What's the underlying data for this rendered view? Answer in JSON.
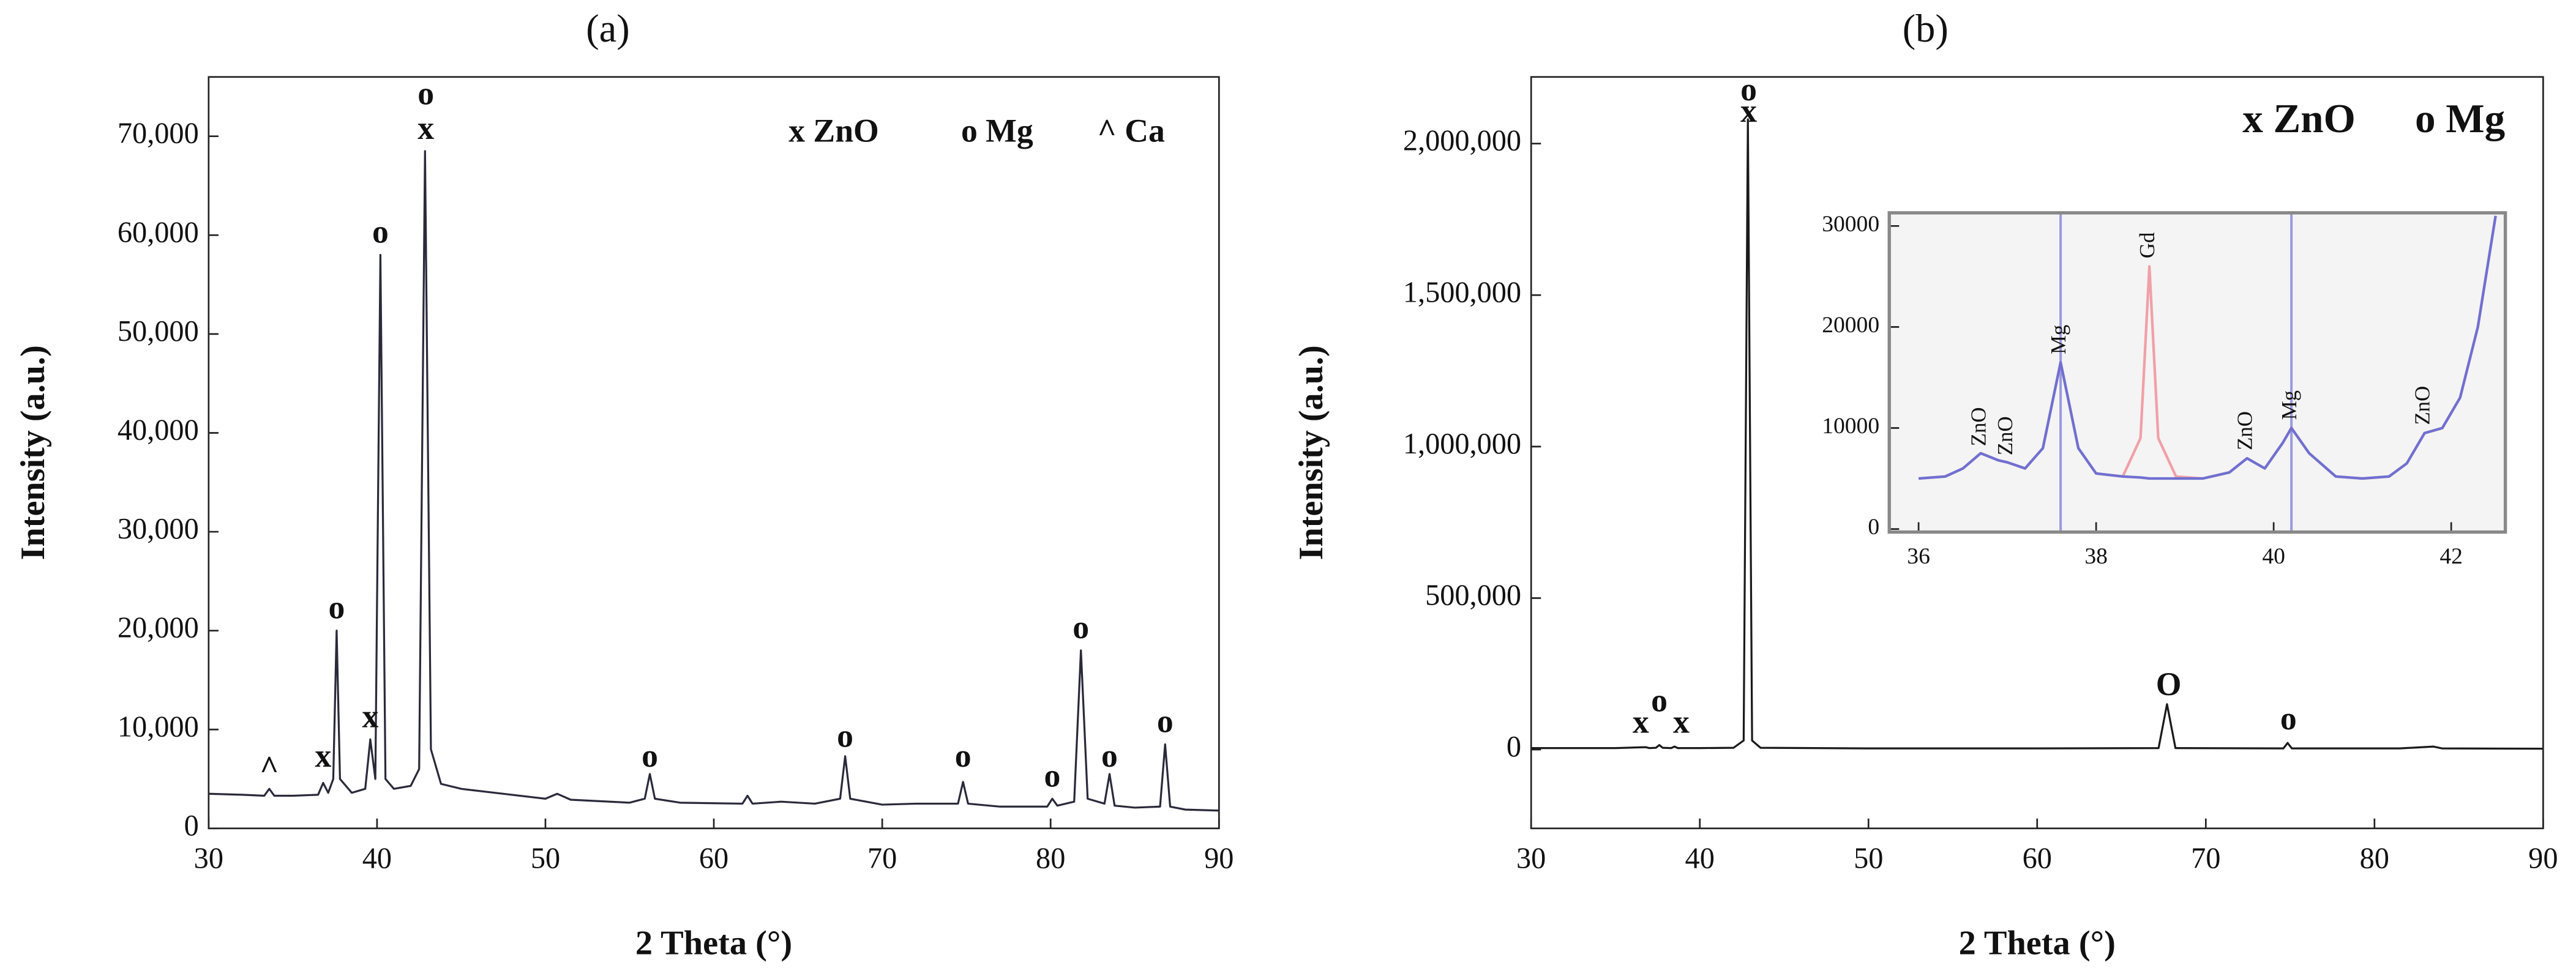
{
  "chart_data": [
    {
      "type": "line",
      "title": "(a)",
      "xlabel": "2 Theta (°)",
      "ylabel": "Intensity (a.u.)",
      "xlim": [
        30,
        90
      ],
      "xticks": [
        30,
        40,
        50,
        60,
        70,
        80,
        90
      ],
      "ylim": [
        0,
        76000
      ],
      "yticks": [
        0,
        {
          "value": 10000,
          "label": "10,000"
        },
        {
          "value": 20000,
          "label": "20,000"
        },
        {
          "value": 30000,
          "label": "30,000"
        },
        {
          "value": 40000,
          "label": "40,000"
        },
        {
          "value": 50000,
          "label": "50,000"
        },
        {
          "value": 60000,
          "label": "60,000"
        },
        {
          "value": 70000,
          "label": "70,000"
        }
      ],
      "key": [
        "x ZnO",
        "o Mg",
        "^ Ca"
      ],
      "x": [
        30,
        32,
        33.3,
        33.6,
        33.9,
        35,
        36.5,
        36.8,
        37.1,
        37.4,
        37.6,
        37.8,
        38.5,
        39.3,
        39.6,
        39.9,
        40.2,
        40.5,
        41,
        42,
        42.5,
        42.85,
        43.2,
        43.8,
        45,
        48,
        50,
        50.7,
        51.5,
        55,
        55.9,
        56.2,
        56.5,
        58,
        61.7,
        62,
        62.3,
        64,
        66,
        67.5,
        67.8,
        68.1,
        70,
        72,
        74.5,
        74.8,
        75.1,
        77,
        79.8,
        80.1,
        80.4,
        81.4,
        81.8,
        82.2,
        83.2,
        83.5,
        83.8,
        85,
        86.5,
        86.8,
        87.1,
        88,
        90
      ],
      "series": [
        {
          "color": "#2a2a3a",
          "values": [
            3500,
            3400,
            3300,
            4000,
            3300,
            3300,
            3400,
            4600,
            3600,
            5000,
            20000,
            5000,
            3600,
            4000,
            9000,
            5000,
            58000,
            5000,
            4000,
            4300,
            6000,
            68500,
            8000,
            4500,
            4000,
            3400,
            3000,
            3500,
            2900,
            2600,
            3000,
            5500,
            3000,
            2600,
            2500,
            3300,
            2500,
            2700,
            2500,
            3000,
            7300,
            3000,
            2400,
            2500,
            2500,
            4700,
            2500,
            2200,
            2200,
            3000,
            2300,
            2700,
            18000,
            3000,
            2500,
            5500,
            2300,
            2100,
            2200,
            8500,
            2200,
            1900,
            1800
          ]
        }
      ],
      "annotations": [
        {
          "text": "^",
          "x": 33.6,
          "y": 5800
        },
        {
          "text": "x",
          "x": 36.8,
          "y": 7000
        },
        {
          "text": "o",
          "x": 37.6,
          "y": 22000
        },
        {
          "text": "x",
          "x": 39.6,
          "y": 11000
        },
        {
          "text": "o",
          "x": 40.2,
          "y": 60000
        },
        {
          "text": "x",
          "x": 42.9,
          "y": 70500
        },
        {
          "text": "o",
          "x": 42.9,
          "y": 74000
        },
        {
          "text": "o",
          "x": 56.2,
          "y": 7000
        },
        {
          "text": "o",
          "x": 67.8,
          "y": 9000
        },
        {
          "text": "o",
          "x": 74.8,
          "y": 7000
        },
        {
          "text": "o",
          "x": 80.1,
          "y": 5000
        },
        {
          "text": "o",
          "x": 81.8,
          "y": 20000
        },
        {
          "text": "o",
          "x": 83.5,
          "y": 7000
        },
        {
          "text": "o",
          "x": 86.8,
          "y": 10500
        }
      ]
    },
    {
      "type": "line",
      "title": "(b)",
      "xlabel": "2 Theta (°)",
      "ylabel": "Intensity (a.u.)",
      "xlim": [
        30,
        90
      ],
      "xticks": [
        30,
        40,
        50,
        60,
        70,
        80,
        90
      ],
      "ylim": [
        -260000,
        2220000
      ],
      "yticks": [
        0,
        {
          "value": 500000,
          "label": "500,000"
        },
        {
          "value": 1000000,
          "label": "1,000,000"
        },
        {
          "value": 1500000,
          "label": "1,500,000"
        },
        {
          "value": 2000000,
          "label": "2,000,000"
        }
      ],
      "key": [
        "x ZnO",
        "o Mg"
      ],
      "x": [
        30,
        35,
        36.8,
        37,
        37.4,
        37.6,
        37.8,
        38.3,
        38.5,
        38.7,
        40,
        42,
        42.6,
        42.85,
        43.1,
        43.6,
        50,
        60,
        67.2,
        67.7,
        68.2,
        74.6,
        74.85,
        75.1,
        81.5,
        83.5,
        84,
        90
      ],
      "series": [
        {
          "color": "#1a1a1a",
          "values": [
            5000,
            5000,
            8000,
            5000,
            6000,
            15000,
            6000,
            5000,
            10000,
            5000,
            5000,
            6000,
            30000,
            2080000,
            30000,
            6000,
            4000,
            4000,
            5000,
            150000,
            5000,
            4000,
            22000,
            4000,
            4000,
            10000,
            4000,
            3000
          ]
        }
      ],
      "annotations": [
        {
          "text": "x",
          "x": 36.5,
          "y": 81000
        },
        {
          "text": "o",
          "x": 37.6,
          "y": 151000
        },
        {
          "text": "x",
          "x": 38.9,
          "y": 81000
        },
        {
          "text": "x",
          "x": 42.9,
          "y": 2097000
        },
        {
          "text": "o",
          "x": 42.9,
          "y": 2168000
        },
        {
          "text": "O",
          "x": 67.8,
          "y": 205000
        },
        {
          "text": "o",
          "x": 74.9,
          "y": 92000
        }
      ]
    },
    {
      "type": "line",
      "xlim": [
        35.67,
        42.61
      ],
      "xticks": [
        36,
        38,
        40,
        42
      ],
      "ylim": [
        -300,
        31300
      ],
      "yticks": [
        0,
        10000,
        20000,
        30000
      ],
      "annotation_rotation": -90,
      "reference_lines": {
        "x": [
          37.6,
          40.2
        ],
        "color": "#9a9ae0"
      },
      "x": [
        36.0,
        36.3,
        36.5,
        36.7,
        36.9,
        37.0,
        37.2,
        37.4,
        37.6,
        37.8,
        38.0,
        38.3,
        38.5,
        38.6,
        38.7,
        38.9,
        39.2,
        39.5,
        39.7,
        39.9,
        40.1,
        40.2,
        40.4,
        40.7,
        41.0,
        41.3,
        41.5,
        41.7,
        41.9,
        42.1,
        42.3,
        42.5
      ],
      "series": [
        {
          "color": "#f0a0a8",
          "values": [
            5000,
            5200,
            6000,
            7500,
            6800,
            6600,
            6000,
            8000,
            16500,
            8000,
            5500,
            5200,
            9000,
            26000,
            9000,
            5200,
            5000,
            5600,
            7000,
            6000,
            8500,
            10000,
            7500,
            5200,
            5000,
            5200,
            6500,
            9500,
            10000,
            13000,
            20000,
            31000
          ]
        },
        {
          "color": "#7070d0",
          "values": [
            5000,
            5200,
            6000,
            7500,
            6800,
            6600,
            6000,
            8000,
            16500,
            8000,
            5500,
            5200,
            5100,
            5000,
            5000,
            5000,
            5000,
            5600,
            7000,
            6000,
            8500,
            10000,
            7500,
            5200,
            5000,
            5200,
            6500,
            9500,
            10000,
            13000,
            20000,
            31000
          ]
        }
      ],
      "annotations": [
        {
          "text": "ZnO",
          "x": 36.7,
          "y": 8200
        },
        {
          "text": "ZnO",
          "x": 37.0,
          "y": 7300
        },
        {
          "text": "Mg",
          "x": 37.6,
          "y": 17300
        },
        {
          "text": "Gd",
          "x": 38.6,
          "y": 26800
        },
        {
          "text": "ZnO",
          "x": 39.7,
          "y": 7800
        },
        {
          "text": "Mg",
          "x": 40.2,
          "y": 10800
        },
        {
          "text": "ZnO",
          "x": 41.7,
          "y": 10300
        }
      ]
    }
  ]
}
